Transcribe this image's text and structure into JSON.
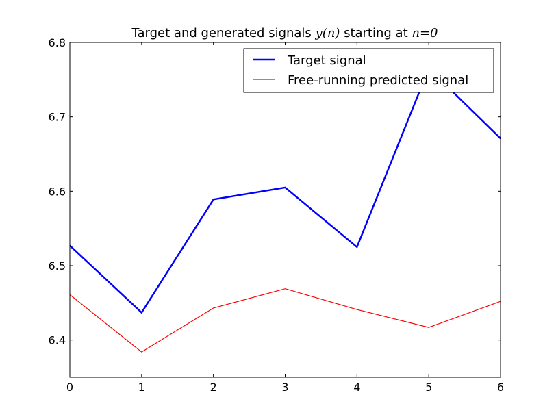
{
  "chart_data": {
    "type": "line",
    "title_parts": {
      "prefix": "Target and generated signals ",
      "math1": "y(n)",
      "middle": " starting at ",
      "math2": "n=0"
    },
    "xlabel": "",
    "ylabel": "",
    "xlim": [
      0,
      6
    ],
    "ylim": [
      6.35,
      6.8
    ],
    "x_ticks": [
      0,
      1,
      2,
      3,
      4,
      5,
      6
    ],
    "x_tick_labels": [
      "0",
      "1",
      "2",
      "3",
      "4",
      "5",
      "6"
    ],
    "y_ticks": [
      6.4,
      6.5,
      6.6,
      6.7,
      6.8
    ],
    "y_tick_labels": [
      "6.4",
      "6.5",
      "6.6",
      "6.7",
      "6.8"
    ],
    "x": [
      0,
      1,
      2,
      3,
      4,
      5,
      6
    ],
    "series": [
      {
        "name": "Target signal",
        "color": "#0000ff",
        "values": [
          6.527,
          6.437,
          6.589,
          6.605,
          6.525,
          6.765,
          6.671
        ]
      },
      {
        "name": "Free-running predicted signal",
        "color": "#ff0000",
        "values": [
          6.461,
          6.384,
          6.443,
          6.469,
          6.441,
          6.417,
          6.452
        ]
      }
    ],
    "grid": false,
    "legend_position": "top-right"
  }
}
